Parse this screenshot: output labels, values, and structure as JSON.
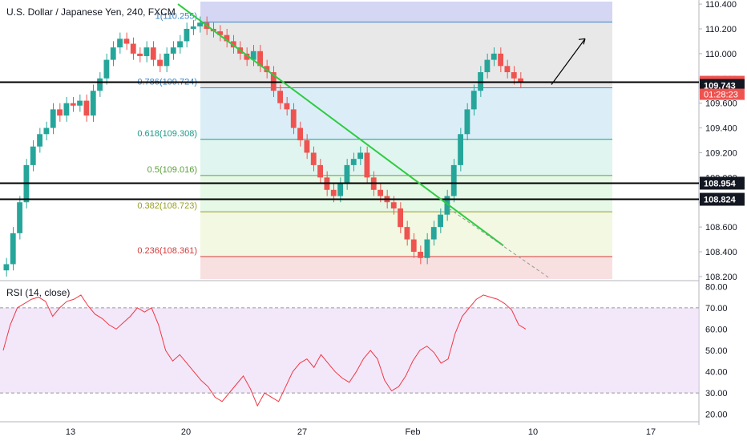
{
  "symbol_title": "U.S. Dollar / Japanese Yen, 240, FXCM",
  "rsi_title": "RSI (14, close)",
  "colors": {
    "up": "#26a69a",
    "down": "#ef5350",
    "trendline": "#2ecc40",
    "rsi_line": "#f23645",
    "rsi_band": "#e9d8f5",
    "fib_top": "#c5c8f0",
    "fib_0": "#e0e0e0",
    "fib_786": "#cfe8f6",
    "fib_618": "#d5f1ea",
    "fib_5": "#ddf5dd",
    "fib_382": "#eef6d8",
    "fib_236": "#f6d6d6",
    "fib_label_blue": "#3a86c8",
    "fib_label_teal": "#1a9b8b",
    "fib_label_green": "#5aa03a",
    "fib_label_olive": "#98a021",
    "fib_label_red": "#d23b3b"
  },
  "chart_data": [
    {
      "type": "candlestick",
      "title": "U.S. Dollar / Japanese Yen, 240, FXCM",
      "x_ticks": [
        "13",
        "20",
        "27",
        "Feb",
        "10",
        "17"
      ],
      "y_ticks": [
        "110.400",
        "110.200",
        "110.000",
        "109.800",
        "109.600",
        "109.400",
        "109.200",
        "109.000",
        "108.800",
        "108.600",
        "108.400",
        "108.200"
      ],
      "ylim": [
        108.18,
        110.42
      ],
      "price_labels": [
        {
          "value": 109.769,
          "text": "109.769",
          "style": "red"
        },
        {
          "value": 109.743,
          "text": "109.743",
          "style": "dark"
        },
        {
          "value": 108.954,
          "text": "108.954",
          "style": "dark"
        },
        {
          "value": 108.824,
          "text": "108.824",
          "style": "dark"
        }
      ],
      "countdown": "01:28:23",
      "horizontal_lines": [
        109.769,
        108.954,
        108.824
      ],
      "fibonacci": [
        {
          "label": "1(110.255)",
          "value": 110.255
        },
        {
          "label": "0.786(109.724)",
          "value": 109.724
        },
        {
          "label": "0.618(109.308)",
          "value": 109.308
        },
        {
          "label": "0.5(109.016)",
          "value": 109.016
        },
        {
          "label": "0.382(108.723)",
          "value": 108.723
        },
        {
          "label": "0.236(108.361)",
          "value": 108.361
        }
      ],
      "candle_closes": [
        108.3,
        108.55,
        108.8,
        109.1,
        109.25,
        109.35,
        109.4,
        109.55,
        109.5,
        109.6,
        109.58,
        109.62,
        109.5,
        109.7,
        109.8,
        109.95,
        110.05,
        110.12,
        110.08,
        110.0,
        109.98,
        110.05,
        109.95,
        109.9,
        110.0,
        110.05,
        110.1,
        110.2,
        110.22,
        110.25,
        110.2,
        110.18,
        110.15,
        110.1,
        110.05,
        110.0,
        109.95,
        110.02,
        109.9,
        109.85,
        109.7,
        109.6,
        109.55,
        109.4,
        109.3,
        109.2,
        109.1,
        109.0,
        108.9,
        108.85,
        108.95,
        109.1,
        109.15,
        109.2,
        109.0,
        108.9,
        108.85,
        108.8,
        108.75,
        108.6,
        108.5,
        108.4,
        108.35,
        108.5,
        108.6,
        108.7,
        108.85,
        109.1,
        109.35,
        109.55,
        109.7,
        109.85,
        109.95,
        110.0,
        109.9,
        109.85,
        109.8,
        109.77
      ],
      "trendline": {
        "start_value": 110.4,
        "end_value": 108.45
      },
      "annotation": "arrow pointing up"
    },
    {
      "type": "line",
      "title": "RSI (14, close)",
      "y_ticks": [
        "80.00",
        "70.00",
        "60.00",
        "50.00",
        "40.00",
        "30.00",
        "20.00"
      ],
      "ylim": [
        18,
        82
      ],
      "band": [
        30,
        70
      ],
      "values": [
        50,
        62,
        70,
        72,
        74,
        75,
        73,
        66,
        70,
        73,
        74,
        76,
        71,
        67,
        65,
        62,
        60,
        63,
        66,
        70,
        68,
        70,
        62,
        50,
        45,
        48,
        44,
        40,
        36,
        33,
        28,
        26,
        30,
        34,
        38,
        32,
        24,
        30,
        28,
        26,
        33,
        40,
        44,
        46,
        42,
        48,
        44,
        40,
        37,
        35,
        40,
        46,
        50,
        46,
        36,
        31,
        33,
        38,
        45,
        50,
        52,
        49,
        44,
        46,
        58,
        66,
        70,
        74,
        76,
        75,
        74,
        72,
        69,
        62,
        60
      ]
    }
  ]
}
